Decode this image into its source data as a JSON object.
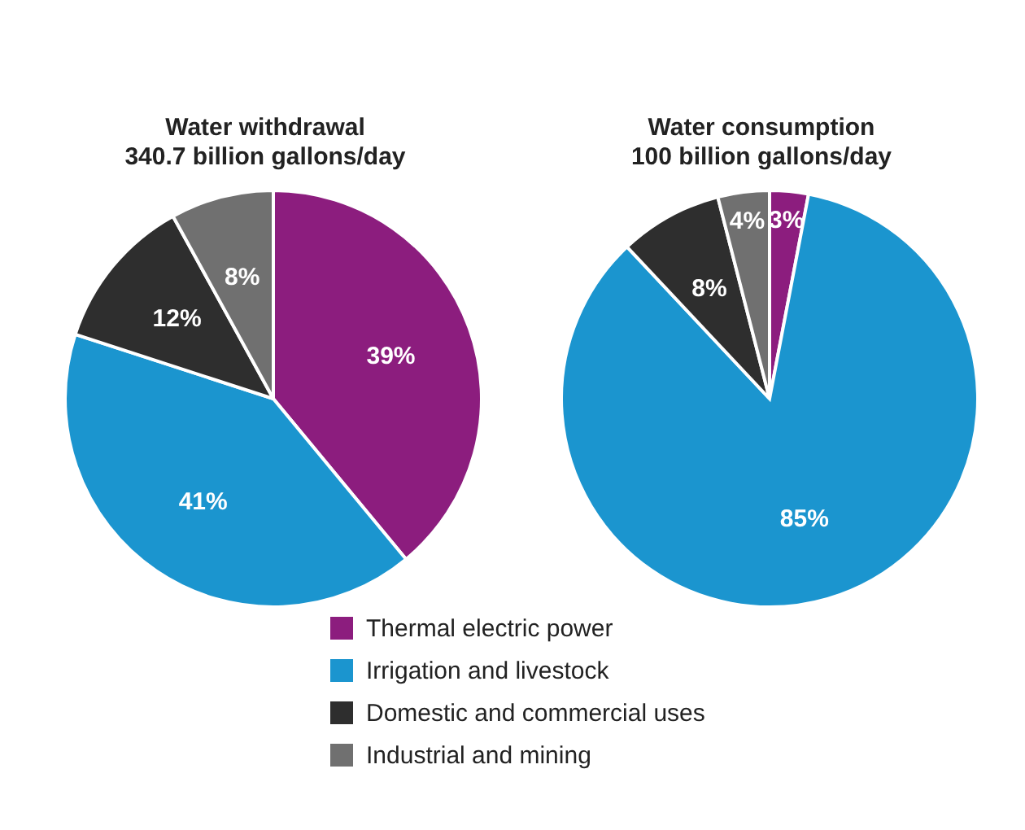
{
  "chart_data": {
    "type": "pie",
    "categories": [
      "Thermal electric power",
      "Irrigation and livestock",
      "Domestic and commercial uses",
      "Industrial and mining"
    ],
    "colors": [
      "#8c1d7e",
      "#1b95cf",
      "#2e2e2e",
      "#707070"
    ],
    "legend": "bottom",
    "series": [
      {
        "values": [
          39,
          41,
          12,
          8
        ],
        "value_labels": [
          "39%",
          "41%",
          "12%",
          "8%"
        ]
      },
      {
        "values": [
          3,
          85,
          8,
          4
        ],
        "value_labels": [
          "3%",
          "85%",
          "8%",
          "4%"
        ]
      }
    ],
    "annotations": [
      "Water withdrawal",
      "340.7 billion gallons/day",
      "Water consumption",
      "100 billion gallons/day"
    ]
  }
}
